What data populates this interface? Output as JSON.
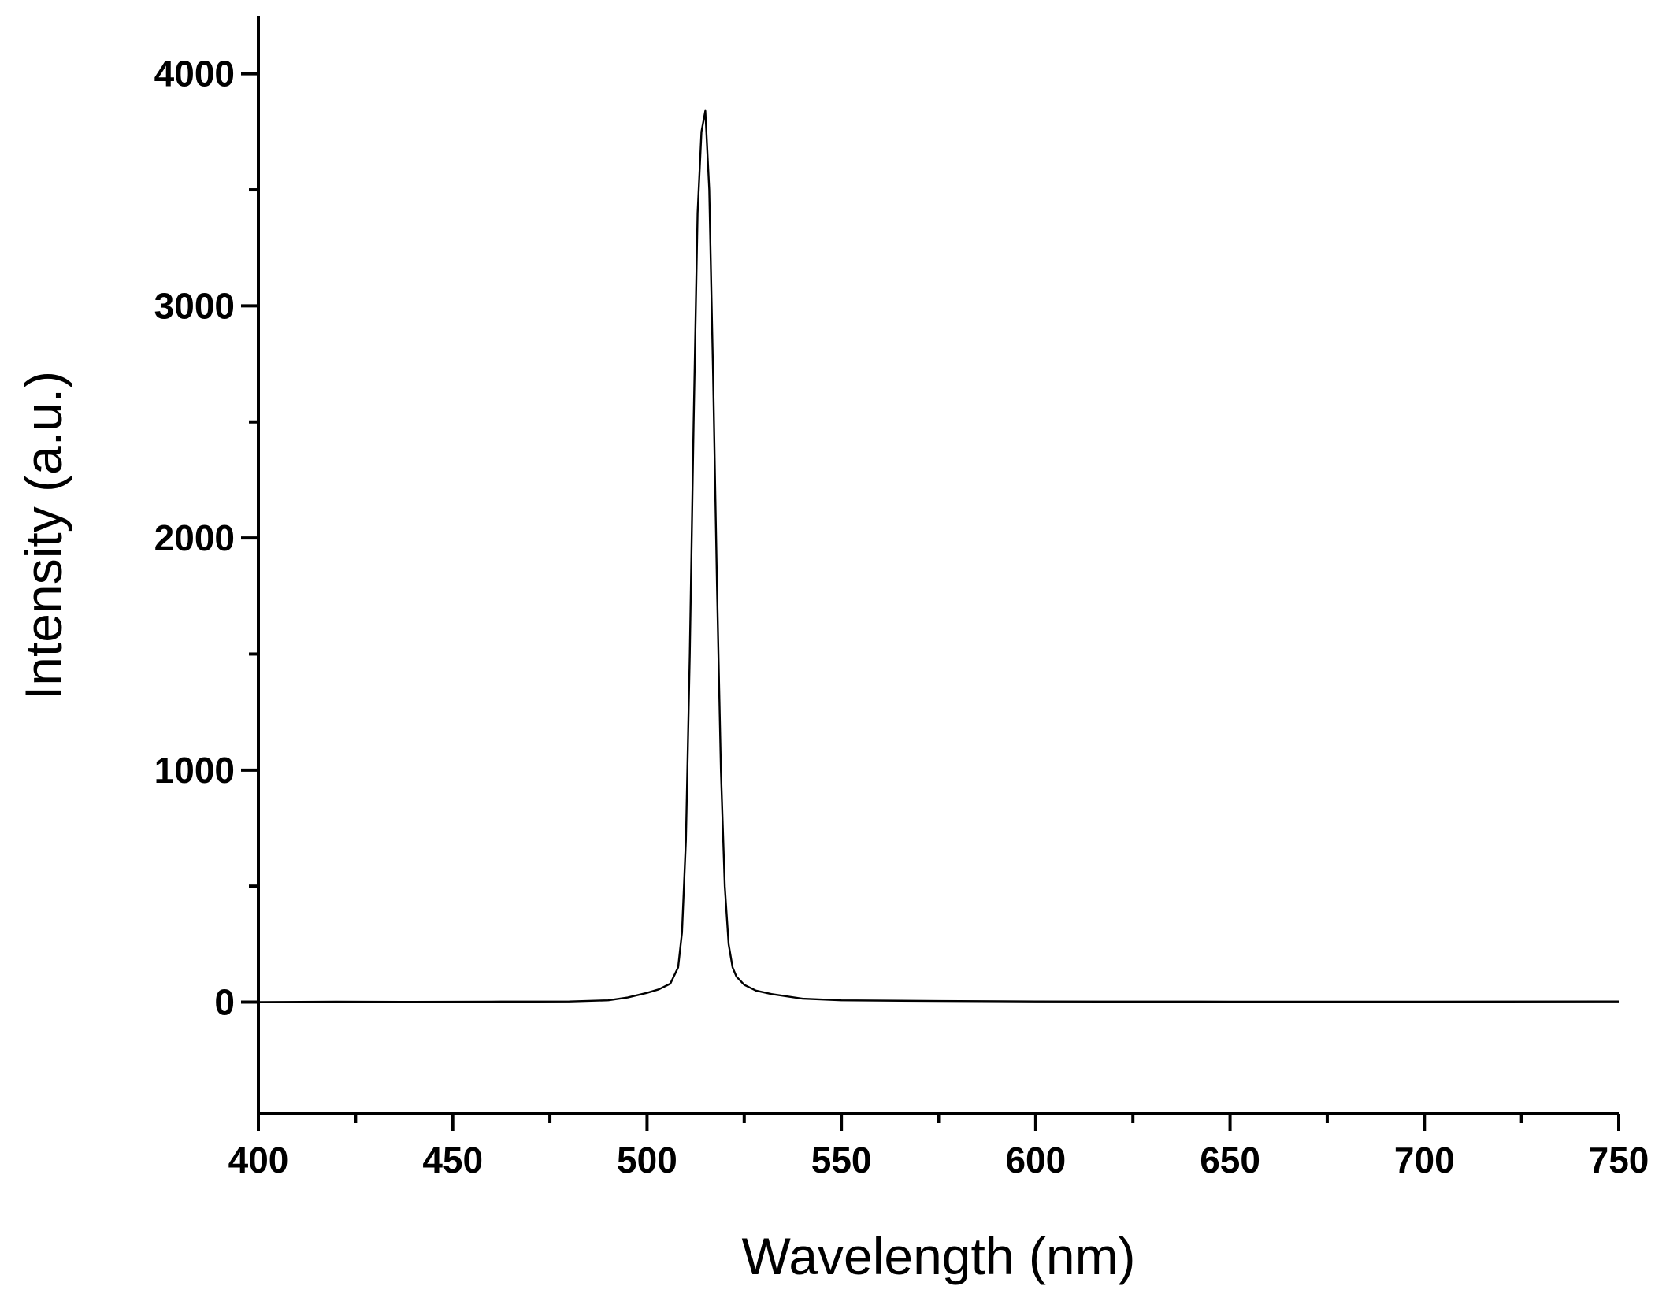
{
  "chart_data": {
    "type": "line",
    "xlabel": "Wavelength (nm)",
    "ylabel": "Intensity (a.u.)",
    "xlim": [
      400,
      750
    ],
    "ylim": [
      -480,
      4250
    ],
    "x_ticks": [
      400,
      450,
      500,
      550,
      600,
      650,
      700,
      750
    ],
    "x_tick_labels": [
      "400",
      "450",
      "500",
      "550",
      "600",
      "650",
      "700",
      "750"
    ],
    "x_minor_step": 25,
    "y_ticks": [
      0,
      1000,
      2000,
      3000,
      4000
    ],
    "y_tick_labels": [
      "0",
      "1000",
      "2000",
      "3000",
      "4000"
    ],
    "y_minor_step": 500,
    "grid": false,
    "line_color": "#000000",
    "series": [
      {
        "x": [
          400,
          420,
          440,
          460,
          480,
          490,
          495,
          500,
          503,
          506,
          508,
          509,
          510,
          511,
          512,
          513,
          514,
          515,
          516,
          517,
          518,
          519,
          520,
          521,
          522,
          523,
          525,
          528,
          532,
          540,
          550,
          575,
          600,
          650,
          700,
          750
        ],
        "y": [
          0,
          2,
          1,
          2,
          3,
          8,
          20,
          40,
          55,
          80,
          150,
          300,
          700,
          1500,
          2500,
          3400,
          3750,
          3840,
          3500,
          2700,
          1800,
          1000,
          500,
          250,
          150,
          110,
          75,
          50,
          35,
          15,
          8,
          5,
          3,
          2,
          2,
          3
        ]
      }
    ]
  }
}
